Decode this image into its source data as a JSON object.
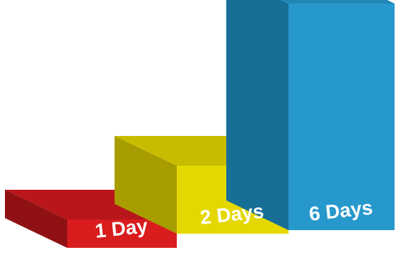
{
  "chart_data": {
    "type": "bar",
    "categories": [
      "1 Day",
      "2 Days",
      "6 Days"
    ],
    "values": [
      1,
      2,
      6
    ],
    "title": "",
    "xlabel": "",
    "ylabel": "",
    "grid": false,
    "style": "3d-stepped",
    "colors": [
      {
        "front": "#D91C1E",
        "top": "#B8161A",
        "side": "#8F1114"
      },
      {
        "front": "#E5D800",
        "top": "#C8BC00",
        "side": "#A89D00"
      },
      {
        "front": "#2798CC",
        "top": "#1F86B6",
        "side": "#176E96"
      }
    ]
  }
}
